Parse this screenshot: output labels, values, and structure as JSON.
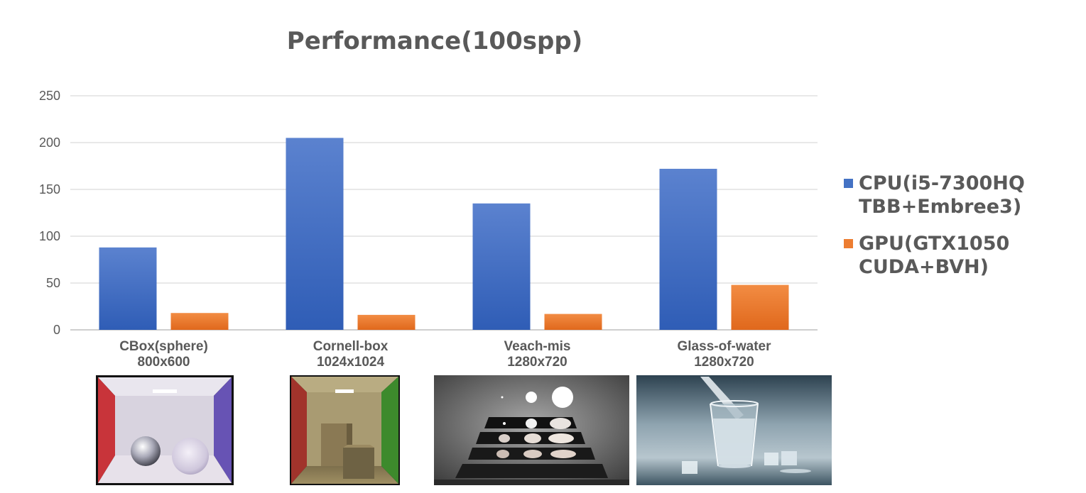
{
  "chart_data": {
    "type": "bar",
    "title": "Performance(100spp)",
    "xlabel": "",
    "ylabel": "",
    "ylim": [
      0,
      250
    ],
    "yticks": [
      0,
      50,
      100,
      150,
      200,
      250
    ],
    "grid": true,
    "legend_position": "right",
    "categories": [
      [
        "CBox(sphere)",
        "800x600"
      ],
      [
        "Cornell-box",
        "1024x1024"
      ],
      [
        "Veach-mis",
        "1280x720"
      ],
      [
        "Glass-of-water",
        "1280x720"
      ]
    ],
    "series": [
      {
        "name": [
          "CPU(i5-7300HQ",
          "TBB+Embree3)"
        ],
        "color": "#4472c4",
        "values": [
          88,
          205,
          135,
          172
        ]
      },
      {
        "name": [
          "GPU(GTX1050",
          "CUDA+BVH)"
        ],
        "color": "#ed7d31",
        "values": [
          18,
          16,
          17,
          48
        ]
      }
    ]
  },
  "thumbnails": [
    {
      "icon": "cbox-sphere-render-thumbnail"
    },
    {
      "icon": "cornell-box-render-thumbnail"
    },
    {
      "icon": "veach-mis-render-thumbnail"
    },
    {
      "icon": "glass-of-water-render-thumbnail"
    }
  ]
}
